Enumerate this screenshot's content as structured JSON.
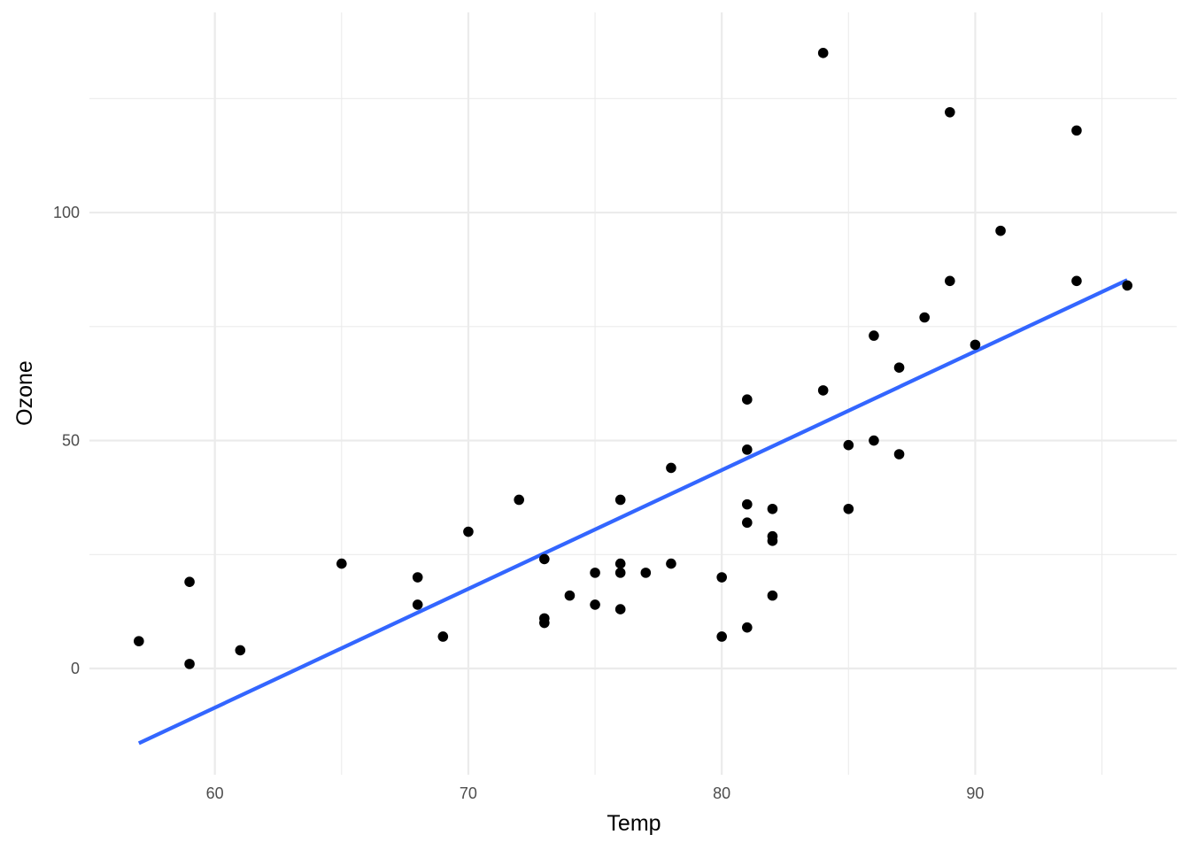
{
  "chart_data": {
    "type": "scatter",
    "title": "",
    "xlabel": "Temp",
    "ylabel": "Ozone",
    "xlim": [
      55.05,
      97.95
    ],
    "ylim": [
      -23.3,
      143.9
    ],
    "x_ticks": [
      60,
      70,
      80,
      90
    ],
    "y_ticks": [
      0,
      50,
      100
    ],
    "x_tick_labels": [
      "60",
      "70",
      "80",
      "90"
    ],
    "y_tick_labels": [
      "0",
      "50",
      "100"
    ],
    "x_minor_ticks": [
      65,
      75,
      85,
      95
    ],
    "y_minor_ticks": [
      25,
      75,
      125
    ],
    "grid": true,
    "legend": "none",
    "point_color": "#000000",
    "line_color": "#3366FF",
    "points": [
      [
        57,
        6
      ],
      [
        59,
        19
      ],
      [
        59,
        1
      ],
      [
        61,
        4
      ],
      [
        65,
        23
      ],
      [
        68,
        20
      ],
      [
        68,
        14
      ],
      [
        69,
        7
      ],
      [
        70,
        30
      ],
      [
        72,
        37
      ],
      [
        73,
        24
      ],
      [
        73,
        11
      ],
      [
        73,
        10
      ],
      [
        74,
        16
      ],
      [
        75,
        21
      ],
      [
        75,
        14
      ],
      [
        76,
        37
      ],
      [
        76,
        23
      ],
      [
        76,
        21
      ],
      [
        76,
        13
      ],
      [
        77,
        21
      ],
      [
        78,
        44
      ],
      [
        78,
        23
      ],
      [
        80,
        20
      ],
      [
        80,
        7
      ],
      [
        81,
        59
      ],
      [
        81,
        48
      ],
      [
        81,
        36
      ],
      [
        81,
        32
      ],
      [
        81,
        9
      ],
      [
        82,
        35
      ],
      [
        82,
        29
      ],
      [
        82,
        28
      ],
      [
        82,
        16
      ],
      [
        84,
        135
      ],
      [
        84,
        61
      ],
      [
        85,
        49
      ],
      [
        85,
        35
      ],
      [
        86,
        73
      ],
      [
        86,
        50
      ],
      [
        87,
        66
      ],
      [
        87,
        47
      ],
      [
        88,
        77
      ],
      [
        89,
        122
      ],
      [
        89,
        85
      ],
      [
        90,
        71
      ],
      [
        91,
        96
      ],
      [
        94,
        118
      ],
      [
        94,
        85
      ],
      [
        96,
        84
      ]
    ],
    "fit_line": {
      "x": [
        57,
        96
      ],
      "y": [
        -16.4,
        85.2
      ]
    }
  }
}
